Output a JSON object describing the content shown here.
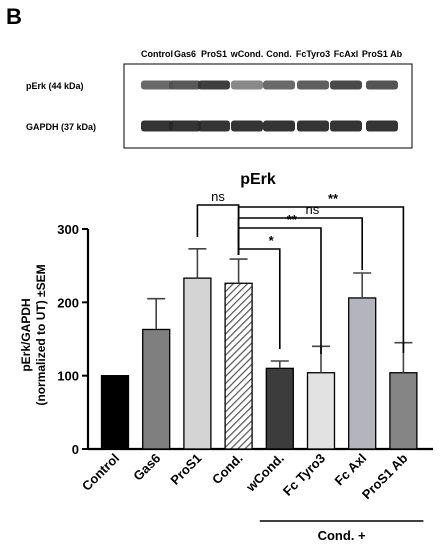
{
  "panel_label": "B",
  "blot": {
    "lanes": [
      "Control",
      "Gas6",
      "ProS1",
      "wCond.",
      "Cond.",
      "FcTyro3",
      "FcAxl",
      "ProS1 Ab"
    ],
    "rows": [
      {
        "label": "pErk (44 kDa)",
        "intensities": [
          0.7,
          0.78,
          0.9,
          0.55,
          0.7,
          0.75,
          0.85,
          0.8
        ]
      },
      {
        "label": "GAPDH (37 kDa)",
        "intensities": [
          0.95,
          0.95,
          0.95,
          0.95,
          0.95,
          0.95,
          0.95,
          0.95
        ]
      }
    ]
  },
  "chart_data": {
    "type": "bar",
    "title": "pErk",
    "ylabel": [
      "pErk/GAPDH",
      "(normalized to UT) ±SEM"
    ],
    "ylim": [
      0,
      300
    ],
    "yticks": [
      0,
      100,
      200,
      300
    ],
    "categories": [
      "Control",
      "Gas6",
      "ProS1",
      "Cond.",
      "wCond.",
      "Fc Tyro3",
      "Fc Axl",
      "ProS1 Ab"
    ],
    "values": [
      100,
      163,
      233,
      226,
      110,
      104,
      206,
      104
    ],
    "errors": [
      0,
      42,
      40,
      33,
      10,
      36,
      34,
      41
    ],
    "colors": [
      "#000000",
      "#7f7f7f",
      "#d4d4d4",
      "hatch",
      "#3c3c3c",
      "#e2e2e2",
      "#b4b4bd",
      "#858585"
    ],
    "comparisons": [
      {
        "from": 3,
        "to": 2,
        "label": "ns"
      },
      {
        "from": 3,
        "to": 4,
        "label": "*"
      },
      {
        "from": 3,
        "to": 5,
        "label": "**"
      },
      {
        "from": 3,
        "to": 6,
        "label": "ns"
      },
      {
        "from": 3,
        "to": 7,
        "label": "**"
      }
    ],
    "group_label": {
      "text": "Cond. +",
      "from": 4,
      "to": 7
    }
  }
}
